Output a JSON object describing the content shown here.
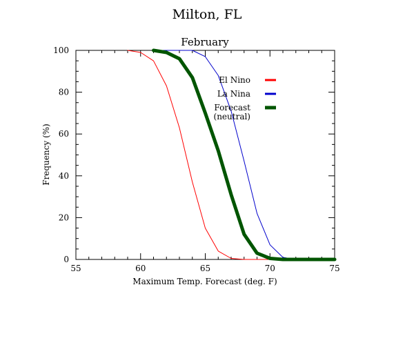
{
  "page": {
    "title": "Milton, FL"
  },
  "chart_data": {
    "type": "line",
    "title": "February",
    "xlabel": "Maximum Temp. Forecast (deg. F)",
    "ylabel": "Frequency (%)",
    "xlim": [
      55,
      75
    ],
    "ylim": [
      0,
      100
    ],
    "xticks": [
      55,
      60,
      65,
      70,
      75
    ],
    "yticks": [
      0,
      20,
      40,
      60,
      80,
      100
    ],
    "grid": false,
    "legend_position": "top-right",
    "series": [
      {
        "name": "El Nino",
        "color": "#ff0000",
        "x": [
          59,
          60,
          61,
          62,
          63,
          64,
          65,
          66,
          67,
          68,
          69,
          70,
          71,
          72,
          73,
          74,
          75
        ],
        "y": [
          100,
          99,
          95,
          83,
          63,
          37,
          15,
          4,
          0.5,
          0,
          0,
          0,
          0,
          0,
          0,
          0,
          0
        ]
      },
      {
        "name": "La Nina",
        "color": "#0000cc",
        "x": [
          61,
          62,
          63,
          64,
          65,
          66,
          67,
          68,
          69,
          70,
          71,
          72,
          73,
          74,
          75
        ],
        "y": [
          100,
          100,
          100,
          100,
          97,
          88,
          71,
          47,
          22,
          7,
          1,
          0,
          0,
          0,
          0
        ]
      },
      {
        "name": "Forecast\n(neutral)",
        "color": "#005500",
        "x": [
          61,
          62,
          63,
          64,
          65,
          66,
          67,
          68,
          69,
          70,
          71,
          72,
          73,
          74,
          75
        ],
        "y": [
          100,
          99,
          96,
          87,
          70,
          52,
          31,
          12,
          3,
          0.5,
          0,
          0,
          0,
          0,
          0
        ]
      }
    ]
  }
}
